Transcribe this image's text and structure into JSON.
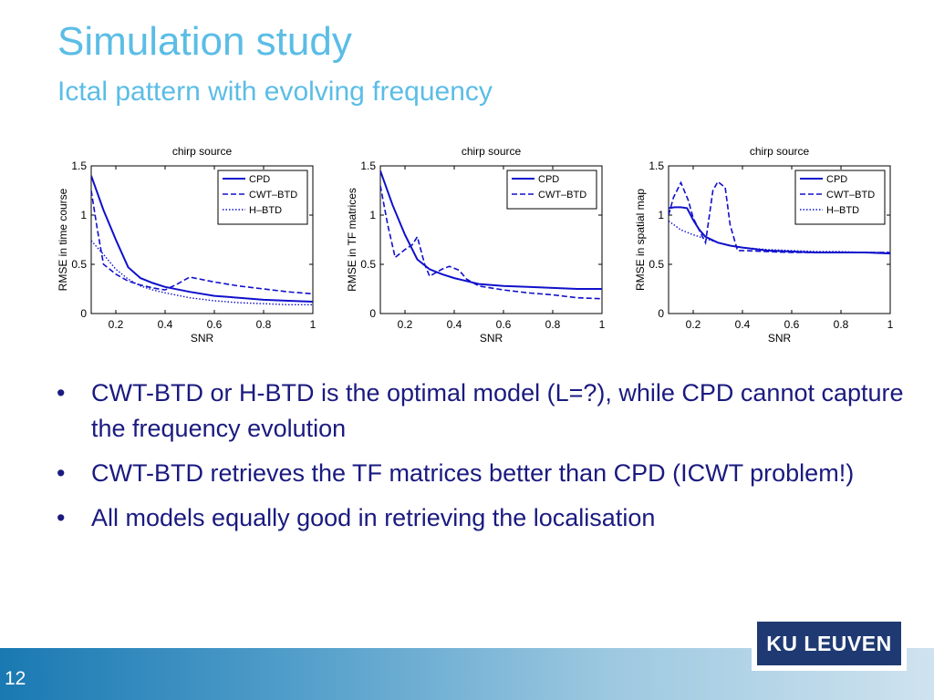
{
  "slide": {
    "title": "Simulation study",
    "subtitle": "Ictal pattern with evolving frequency",
    "page_number": "12",
    "logo_text": "KU LEUVEN",
    "bullet_glyph": "•",
    "bullets": [
      "CWT-BTD or H-BTD is the optimal model (L=?), while CPD cannot capture the frequency evolution",
      "CWT-BTD retrieves the TF matrices better than CPD (ICWT problem!)",
      "All models equally good in retrieving the localisation"
    ]
  },
  "colors": {
    "title": "#5bbde6",
    "bullet_text": "#1a1a80",
    "series": "#1010cc",
    "logo_bg": "#1f3a73"
  },
  "chart_data": [
    {
      "type": "line",
      "title": "chirp source",
      "xlabel": "SNR",
      "ylabel": "RMSE in time course",
      "xlim": [
        0.1,
        1
      ],
      "ylim": [
        0,
        1.5
      ],
      "xticks": [
        "0.2",
        "0.4",
        "0.6",
        "0.8",
        "1"
      ],
      "yticks": [
        "0",
        "0.5",
        "1",
        "1.5"
      ],
      "legend_position": "top-right",
      "series": [
        {
          "name": "CPD",
          "style": "solid",
          "x": [
            0.1,
            0.15,
            0.2,
            0.25,
            0.3,
            0.35,
            0.4,
            0.5,
            0.6,
            0.7,
            0.8,
            0.9,
            1.0
          ],
          "y": [
            1.4,
            1.05,
            0.75,
            0.47,
            0.36,
            0.31,
            0.27,
            0.22,
            0.18,
            0.16,
            0.14,
            0.13,
            0.12
          ]
        },
        {
          "name": "CWT–BTD",
          "style": "dashed",
          "x": [
            0.1,
            0.125,
            0.15,
            0.2,
            0.25,
            0.3,
            0.35,
            0.4,
            0.45,
            0.5,
            0.6,
            0.7,
            0.8,
            0.9,
            1.0
          ],
          "y": [
            1.25,
            0.85,
            0.5,
            0.4,
            0.33,
            0.29,
            0.26,
            0.24,
            0.3,
            0.37,
            0.32,
            0.28,
            0.25,
            0.22,
            0.2
          ]
        },
        {
          "name": "H–BTD",
          "style": "dotted",
          "x": [
            0.1,
            0.15,
            0.2,
            0.25,
            0.3,
            0.35,
            0.4,
            0.5,
            0.6,
            0.7,
            0.8,
            0.9,
            1.0
          ],
          "y": [
            0.74,
            0.6,
            0.45,
            0.35,
            0.28,
            0.24,
            0.21,
            0.16,
            0.13,
            0.11,
            0.1,
            0.09,
            0.09
          ]
        }
      ]
    },
    {
      "type": "line",
      "title": "chirp source",
      "xlabel": "SNR",
      "ylabel": "RMSE in TF matrices",
      "xlim": [
        0.1,
        1
      ],
      "ylim": [
        0,
        1.5
      ],
      "xticks": [
        "0.2",
        "0.4",
        "0.6",
        "0.8",
        "1"
      ],
      "yticks": [
        "0",
        "0.5",
        "1",
        "1.5"
      ],
      "legend_position": "top-right",
      "series": [
        {
          "name": "CPD",
          "style": "solid",
          "x": [
            0.1,
            0.15,
            0.2,
            0.25,
            0.3,
            0.35,
            0.4,
            0.5,
            0.6,
            0.7,
            0.8,
            0.9,
            1.0
          ],
          "y": [
            1.45,
            1.1,
            0.8,
            0.55,
            0.45,
            0.4,
            0.36,
            0.3,
            0.28,
            0.27,
            0.26,
            0.25,
            0.25
          ]
        },
        {
          "name": "CWT–BTD",
          "style": "dashed",
          "x": [
            0.1,
            0.13,
            0.16,
            0.2,
            0.23,
            0.25,
            0.28,
            0.3,
            0.35,
            0.38,
            0.42,
            0.45,
            0.5,
            0.6,
            0.7,
            0.8,
            0.9,
            1.0
          ],
          "y": [
            1.3,
            0.9,
            0.57,
            0.65,
            0.7,
            0.78,
            0.5,
            0.38,
            0.45,
            0.48,
            0.44,
            0.35,
            0.28,
            0.24,
            0.21,
            0.19,
            0.16,
            0.15
          ]
        }
      ]
    },
    {
      "type": "line",
      "title": "chirp source",
      "xlabel": "SNR",
      "ylabel": "RMSE in spatial map",
      "xlim": [
        0.1,
        1
      ],
      "ylim": [
        0,
        1.5
      ],
      "xticks": [
        "0.2",
        "0.4",
        "0.6",
        "0.8",
        "1"
      ],
      "yticks": [
        "0",
        "0.5",
        "1",
        "1.5"
      ],
      "legend_position": "top-right",
      "series": [
        {
          "name": "CPD",
          "style": "solid",
          "x": [
            0.1,
            0.125,
            0.15,
            0.175,
            0.2,
            0.225,
            0.25,
            0.3,
            0.35,
            0.4,
            0.5,
            0.6,
            0.7,
            0.8,
            0.9,
            1.0
          ],
          "y": [
            1.07,
            1.08,
            1.08,
            1.07,
            0.95,
            0.85,
            0.78,
            0.72,
            0.69,
            0.67,
            0.64,
            0.63,
            0.62,
            0.62,
            0.62,
            0.61
          ]
        },
        {
          "name": "CWT–BTD",
          "style": "dashed",
          "x": [
            0.1,
            0.12,
            0.15,
            0.18,
            0.2,
            0.23,
            0.25,
            0.28,
            0.3,
            0.33,
            0.35,
            0.38,
            0.4,
            0.5,
            0.6,
            0.7,
            0.8,
            0.9,
            1.0
          ],
          "y": [
            1.0,
            1.18,
            1.33,
            1.15,
            0.97,
            0.82,
            0.72,
            1.25,
            1.34,
            1.28,
            0.9,
            0.64,
            0.64,
            0.63,
            0.62,
            0.62,
            0.62,
            0.62,
            0.62
          ]
        },
        {
          "name": "H–BTD",
          "style": "dotted",
          "x": [
            0.1,
            0.15,
            0.2,
            0.25,
            0.3,
            0.35,
            0.4,
            0.5,
            0.6,
            0.7,
            0.8,
            0.9,
            1.0
          ],
          "y": [
            0.94,
            0.85,
            0.8,
            0.76,
            0.72,
            0.69,
            0.67,
            0.65,
            0.64,
            0.63,
            0.63,
            0.62,
            0.62
          ]
        }
      ]
    }
  ]
}
